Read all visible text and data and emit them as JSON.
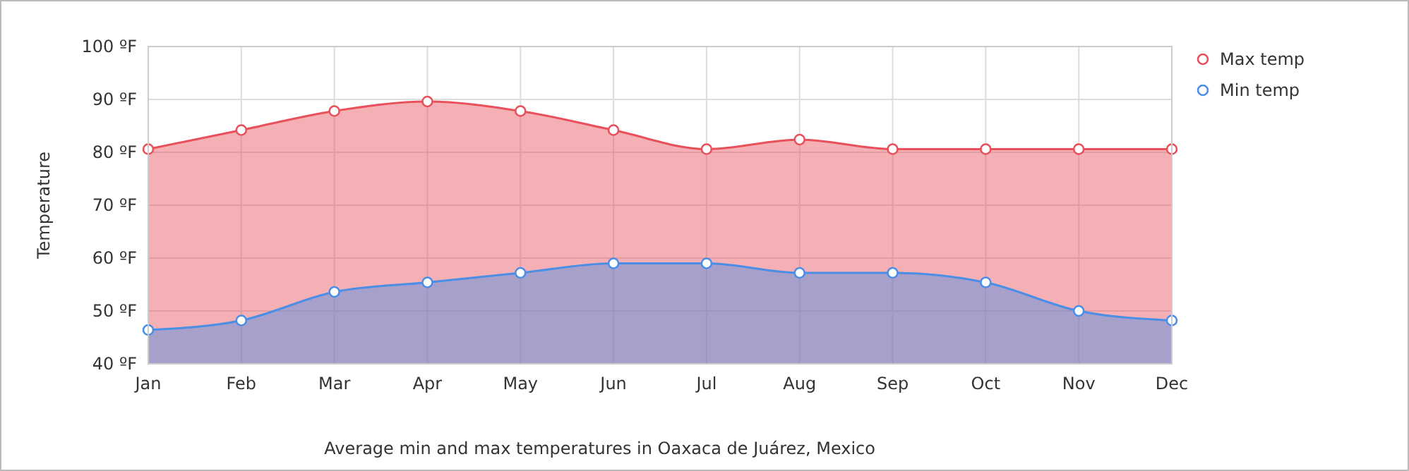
{
  "chart_data": {
    "type": "area",
    "ylabel": "Temperature",
    "categories": [
      "Jan",
      "Feb",
      "Mar",
      "Apr",
      "May",
      "Jun",
      "Jul",
      "Aug",
      "Sep",
      "Oct",
      "Nov",
      "Dec"
    ],
    "series": [
      {
        "name": "Max temp",
        "color": "#e8505b",
        "values": [
          80.6,
          84.2,
          87.8,
          89.6,
          87.8,
          84.2,
          80.6,
          82.4,
          80.6,
          80.6,
          80.6,
          80.6
        ]
      },
      {
        "name": "Min temp",
        "color": "#4a8ee6",
        "values": [
          46.4,
          48.2,
          53.6,
          55.4,
          57.2,
          59,
          59,
          57.2,
          57.2,
          55.4,
          50,
          48.2
        ]
      }
    ],
    "ylim": [
      40,
      100
    ],
    "yticks": [
      {
        "value": 40,
        "label": "40 ºF"
      },
      {
        "value": 50,
        "label": "50 ºF"
      },
      {
        "value": 60,
        "label": "60 ºF"
      },
      {
        "value": 70,
        "label": "70 ºF"
      },
      {
        "value": 80,
        "label": "80 ºF"
      },
      {
        "value": 90,
        "label": "90 ºF"
      },
      {
        "value": 100,
        "label": "100 ºF"
      }
    ],
    "grid": true,
    "legend": "top right",
    "marker": "circle",
    "annotations": [
      "Average min and max temperatures in Oaxaca de Juárez, Mexico"
    ]
  }
}
